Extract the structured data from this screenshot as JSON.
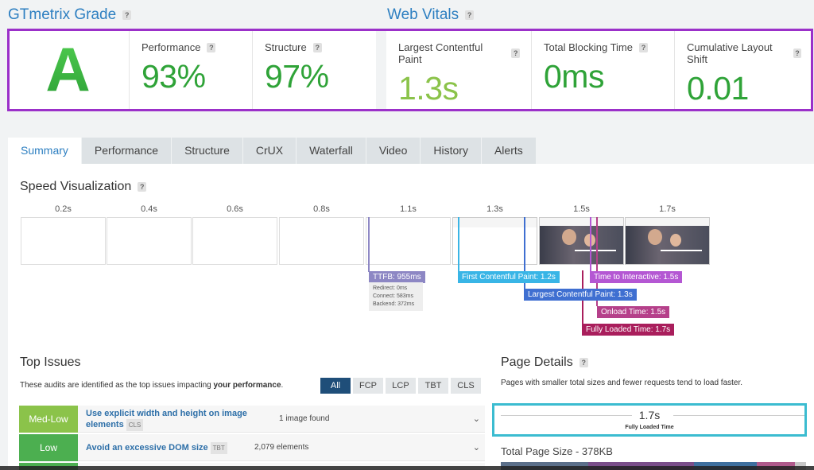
{
  "grade": {
    "section_title": "GTmetrix Grade",
    "letter": "A",
    "performance_label": "Performance",
    "performance_value": "93%",
    "structure_label": "Structure",
    "structure_value": "97%"
  },
  "vitals": {
    "section_title": "Web Vitals",
    "lcp_label": "Largest Contentful Paint",
    "lcp_value": "1.3s",
    "tbt_label": "Total Blocking Time",
    "tbt_value": "0ms",
    "cls_label": "Cumulative Layout Shift",
    "cls_value": "0.01"
  },
  "help_glyph": "?",
  "colors": {
    "accent": "#2d7fc1",
    "good": "#2fa338",
    "lcp": "#8bc34a",
    "highlight": "#9b30c9"
  },
  "tabs": [
    "Summary",
    "Performance",
    "Structure",
    "CrUX",
    "Waterfall",
    "Video",
    "History",
    "Alerts"
  ],
  "speed_viz": {
    "title": "Speed Visualization",
    "times": [
      "0.2s",
      "0.4s",
      "0.6s",
      "0.8s",
      "1.1s",
      "1.3s",
      "1.5s",
      "1.7s"
    ],
    "ttfb": "TTFB: 955ms",
    "ttfb_redirect": "Redirect: 0ms",
    "ttfb_connect": "Connect: 583ms",
    "ttfb_backend": "Backend: 372ms",
    "fcp": "First Contentful Paint: 1.2s",
    "lcp": "Largest Contentful Paint: 1.3s",
    "tti": "Time to Interactive: 1.5s",
    "onload": "Onload Time: 1.5s",
    "fully_loaded": "Fully Loaded Time: 1.7s"
  },
  "top_issues": {
    "title": "Top Issues",
    "description_prefix": "These audits are identified as the top issues impacting ",
    "description_bold": "your performance",
    "description_suffix": ".",
    "filters": [
      "All",
      "FCP",
      "LCP",
      "TBT",
      "CLS"
    ],
    "items": [
      {
        "severity": "Med-Low",
        "title": "Use explicit width and height on image elements",
        "tag": "CLS",
        "value": "1 image found"
      },
      {
        "severity": "Low",
        "title": "Avoid an excessive DOM size",
        "tag": "TBT",
        "value": "2,079 elements"
      }
    ]
  },
  "page_details": {
    "title": "Page Details",
    "description": "Pages with smaller total sizes and fewer requests tend to load faster.",
    "fully_loaded_value": "1.7s",
    "fully_loaded_label": "Fully Loaded Time",
    "total_size": "Total Page Size - 378KB"
  }
}
